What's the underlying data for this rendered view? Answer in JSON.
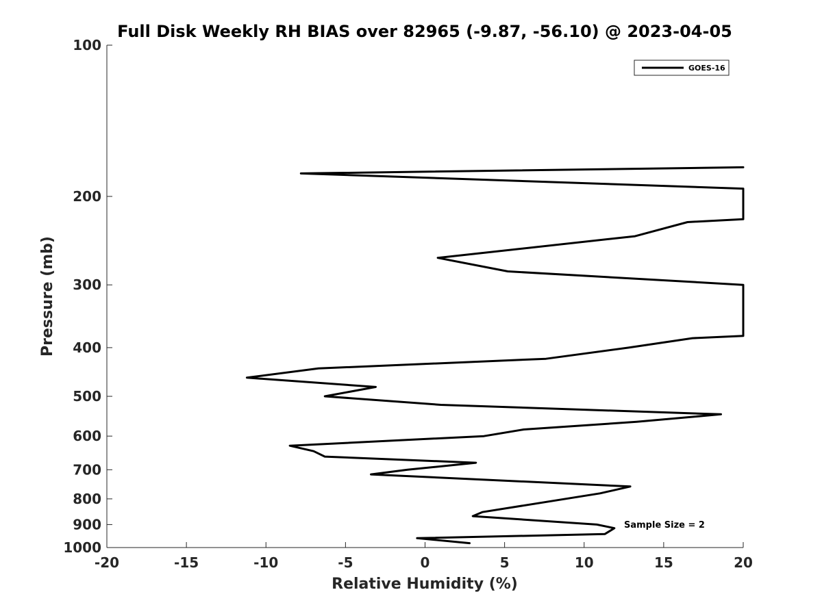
{
  "chart_data": {
    "type": "line",
    "title": "Full Disk Weekly RH BIAS over 82965 (-9.87, -56.10) @ 2023-04-05",
    "xlabel": "Relative Humidity (%)",
    "ylabel": "Pressure (mb)",
    "xlim": [
      -20,
      20
    ],
    "ylim": [
      100,
      1000
    ],
    "yscale": "log",
    "y_reversed": true,
    "grid": false,
    "legend_position": "top-right",
    "x_ticks": [
      -20,
      -15,
      -10,
      -5,
      0,
      5,
      10,
      15,
      20
    ],
    "y_ticks": [
      100,
      200,
      300,
      400,
      500,
      600,
      700,
      800,
      900,
      1000
    ],
    "series": [
      {
        "name": "GOES-16",
        "color": "#000000",
        "points": [
          {
            "x": 20.0,
            "y": 175
          },
          {
            "x": -7.8,
            "y": 180
          },
          {
            "x": 20.0,
            "y": 193
          },
          {
            "x": 20.0,
            "y": 222
          },
          {
            "x": 16.5,
            "y": 225
          },
          {
            "x": 13.2,
            "y": 240
          },
          {
            "x": 0.8,
            "y": 265
          },
          {
            "x": 5.2,
            "y": 282
          },
          {
            "x": 20.0,
            "y": 300
          },
          {
            "x": 20.0,
            "y": 379
          },
          {
            "x": 16.8,
            "y": 383
          },
          {
            "x": 12.8,
            "y": 400
          },
          {
            "x": 7.6,
            "y": 421
          },
          {
            "x": -6.7,
            "y": 440
          },
          {
            "x": -11.2,
            "y": 459
          },
          {
            "x": -3.1,
            "y": 479
          },
          {
            "x": -6.3,
            "y": 500
          },
          {
            "x": 1.0,
            "y": 520
          },
          {
            "x": 18.6,
            "y": 543
          },
          {
            "x": 13.3,
            "y": 562
          },
          {
            "x": 6.2,
            "y": 582
          },
          {
            "x": 3.7,
            "y": 600
          },
          {
            "x": -8.5,
            "y": 627
          },
          {
            "x": -7.0,
            "y": 643
          },
          {
            "x": -6.3,
            "y": 659
          },
          {
            "x": 3.2,
            "y": 678
          },
          {
            "x": -1.1,
            "y": 700
          },
          {
            "x": -3.4,
            "y": 715
          },
          {
            "x": 12.9,
            "y": 756
          },
          {
            "x": 11.0,
            "y": 780
          },
          {
            "x": 3.6,
            "y": 850
          },
          {
            "x": 3.0,
            "y": 866
          },
          {
            "x": 10.8,
            "y": 900
          },
          {
            "x": 11.9,
            "y": 915
          },
          {
            "x": 11.3,
            "y": 940
          },
          {
            "x": -0.5,
            "y": 958
          },
          {
            "x": 2.8,
            "y": 980
          }
        ]
      }
    ],
    "annotations": [
      "Sample Size = 2"
    ]
  }
}
